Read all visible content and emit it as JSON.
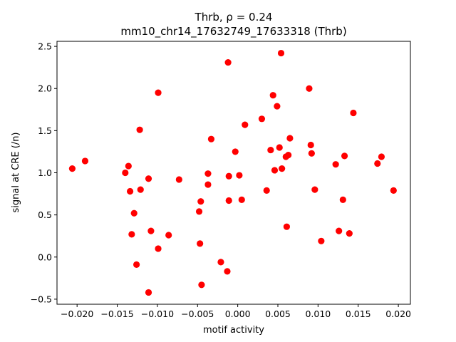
{
  "chart_data": {
    "type": "scatter",
    "title_line1": "Thrb, ρ = 0.24",
    "title_line2": "mm10_chr14_17632749_17633318 (Thrb)",
    "xlabel": "motif activity",
    "ylabel": "signal at CRE (/n)",
    "xlim": [
      -0.0225,
      0.0215
    ],
    "ylim": [
      -0.56,
      2.56
    ],
    "xticks": [
      -0.02,
      -0.015,
      -0.01,
      -0.005,
      0.0,
      0.005,
      0.01,
      0.015,
      0.02
    ],
    "xtick_labels": [
      "−0.020",
      "−0.015",
      "−0.010",
      "−0.005",
      "0.000",
      "0.005",
      "0.010",
      "0.015",
      "0.020"
    ],
    "yticks": [
      -0.5,
      0.0,
      0.5,
      1.0,
      1.5,
      2.0,
      2.5
    ],
    "ytick_labels": [
      "−0.5",
      "0.0",
      "0.5",
      "1.0",
      "1.5",
      "2.0",
      "2.5"
    ],
    "grid": false,
    "marker_color": "#ff0000",
    "points": [
      {
        "x": -0.0206,
        "y": 1.05
      },
      {
        "x": -0.019,
        "y": 1.14
      },
      {
        "x": -0.014,
        "y": 1.0
      },
      {
        "x": -0.0136,
        "y": 1.08
      },
      {
        "x": -0.0134,
        "y": 0.78
      },
      {
        "x": -0.0132,
        "y": 0.27
      },
      {
        "x": -0.0129,
        "y": 0.52
      },
      {
        "x": -0.0126,
        "y": -0.09
      },
      {
        "x": -0.0122,
        "y": 1.51
      },
      {
        "x": -0.0121,
        "y": 0.8
      },
      {
        "x": -0.0111,
        "y": 0.93
      },
      {
        "x": -0.0108,
        "y": 0.31
      },
      {
        "x": -0.0111,
        "y": -0.42
      },
      {
        "x": -0.0099,
        "y": 1.95
      },
      {
        "x": -0.0099,
        "y": 0.1
      },
      {
        "x": -0.0086,
        "y": 0.26
      },
      {
        "x": -0.0073,
        "y": 0.92
      },
      {
        "x": -0.0048,
        "y": 0.54
      },
      {
        "x": -0.0047,
        "y": 0.16
      },
      {
        "x": -0.0046,
        "y": 0.66
      },
      {
        "x": -0.0045,
        "y": -0.33
      },
      {
        "x": -0.0037,
        "y": 0.99
      },
      {
        "x": -0.0037,
        "y": 0.86
      },
      {
        "x": -0.0033,
        "y": 1.4
      },
      {
        "x": -0.0021,
        "y": -0.06
      },
      {
        "x": -0.0012,
        "y": 2.31
      },
      {
        "x": -0.0011,
        "y": 0.96
      },
      {
        "x": -0.0011,
        "y": 0.67
      },
      {
        "x": -0.0013,
        "y": -0.17
      },
      {
        "x": -0.0003,
        "y": 1.25
      },
      {
        "x": 0.0002,
        "y": 0.97
      },
      {
        "x": 0.0005,
        "y": 0.68
      },
      {
        "x": 0.0009,
        "y": 1.57
      },
      {
        "x": 0.003,
        "y": 1.64
      },
      {
        "x": 0.0036,
        "y": 0.79
      },
      {
        "x": 0.0041,
        "y": 1.27
      },
      {
        "x": 0.0044,
        "y": 1.92
      },
      {
        "x": 0.0046,
        "y": 1.03
      },
      {
        "x": 0.0049,
        "y": 1.79
      },
      {
        "x": 0.0052,
        "y": 1.3
      },
      {
        "x": 0.0054,
        "y": 2.42
      },
      {
        "x": 0.0055,
        "y": 1.05
      },
      {
        "x": 0.006,
        "y": 1.19
      },
      {
        "x": 0.0061,
        "y": 0.36
      },
      {
        "x": 0.0063,
        "y": 1.21
      },
      {
        "x": 0.0065,
        "y": 1.41
      },
      {
        "x": 0.0089,
        "y": 2.0
      },
      {
        "x": 0.0091,
        "y": 1.33
      },
      {
        "x": 0.0092,
        "y": 1.23
      },
      {
        "x": 0.0096,
        "y": 0.8
      },
      {
        "x": 0.0104,
        "y": 0.19
      },
      {
        "x": 0.0122,
        "y": 1.1
      },
      {
        "x": 0.0126,
        "y": 0.31
      },
      {
        "x": 0.0131,
        "y": 0.68
      },
      {
        "x": 0.0133,
        "y": 1.2
      },
      {
        "x": 0.0139,
        "y": 0.28
      },
      {
        "x": 0.0144,
        "y": 1.71
      },
      {
        "x": 0.0174,
        "y": 1.11
      },
      {
        "x": 0.0179,
        "y": 1.19
      },
      {
        "x": 0.0194,
        "y": 0.79
      }
    ]
  }
}
